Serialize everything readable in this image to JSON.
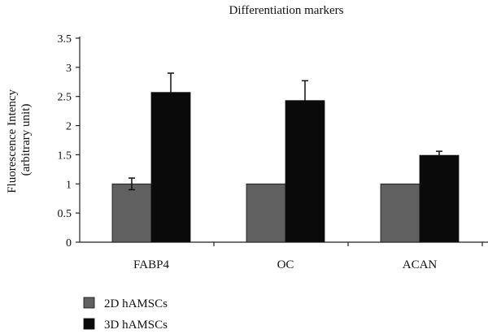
{
  "chart_data": {
    "type": "bar",
    "title": "Differentiation markers",
    "ylabel_lines": [
      "Fluorescence Intency",
      "(arbitrary unit)"
    ],
    "xlabel": "",
    "categories": [
      "FABP4",
      "OC",
      "ACAN"
    ],
    "ylim": [
      0,
      3.5
    ],
    "yticks": [
      0,
      0.5,
      1,
      1.5,
      2,
      2.5,
      3,
      3.5
    ],
    "ytick_labels": [
      "0",
      "0.5",
      "1",
      "1.5",
      "2",
      "2.5",
      "3",
      "3.5"
    ],
    "grid": false,
    "legend_position": "bottom-left",
    "series": [
      {
        "name": "2D hAMSCs",
        "color": "#606060",
        "values": [
          1.0,
          1.0,
          1.0
        ],
        "errors": [
          0.1,
          0.0,
          0.0
        ]
      },
      {
        "name": "3D hAMSCs",
        "color": "#0a0a0a",
        "values": [
          2.57,
          2.43,
          1.49
        ],
        "errors": [
          0.33,
          0.34,
          0.07
        ]
      }
    ]
  }
}
